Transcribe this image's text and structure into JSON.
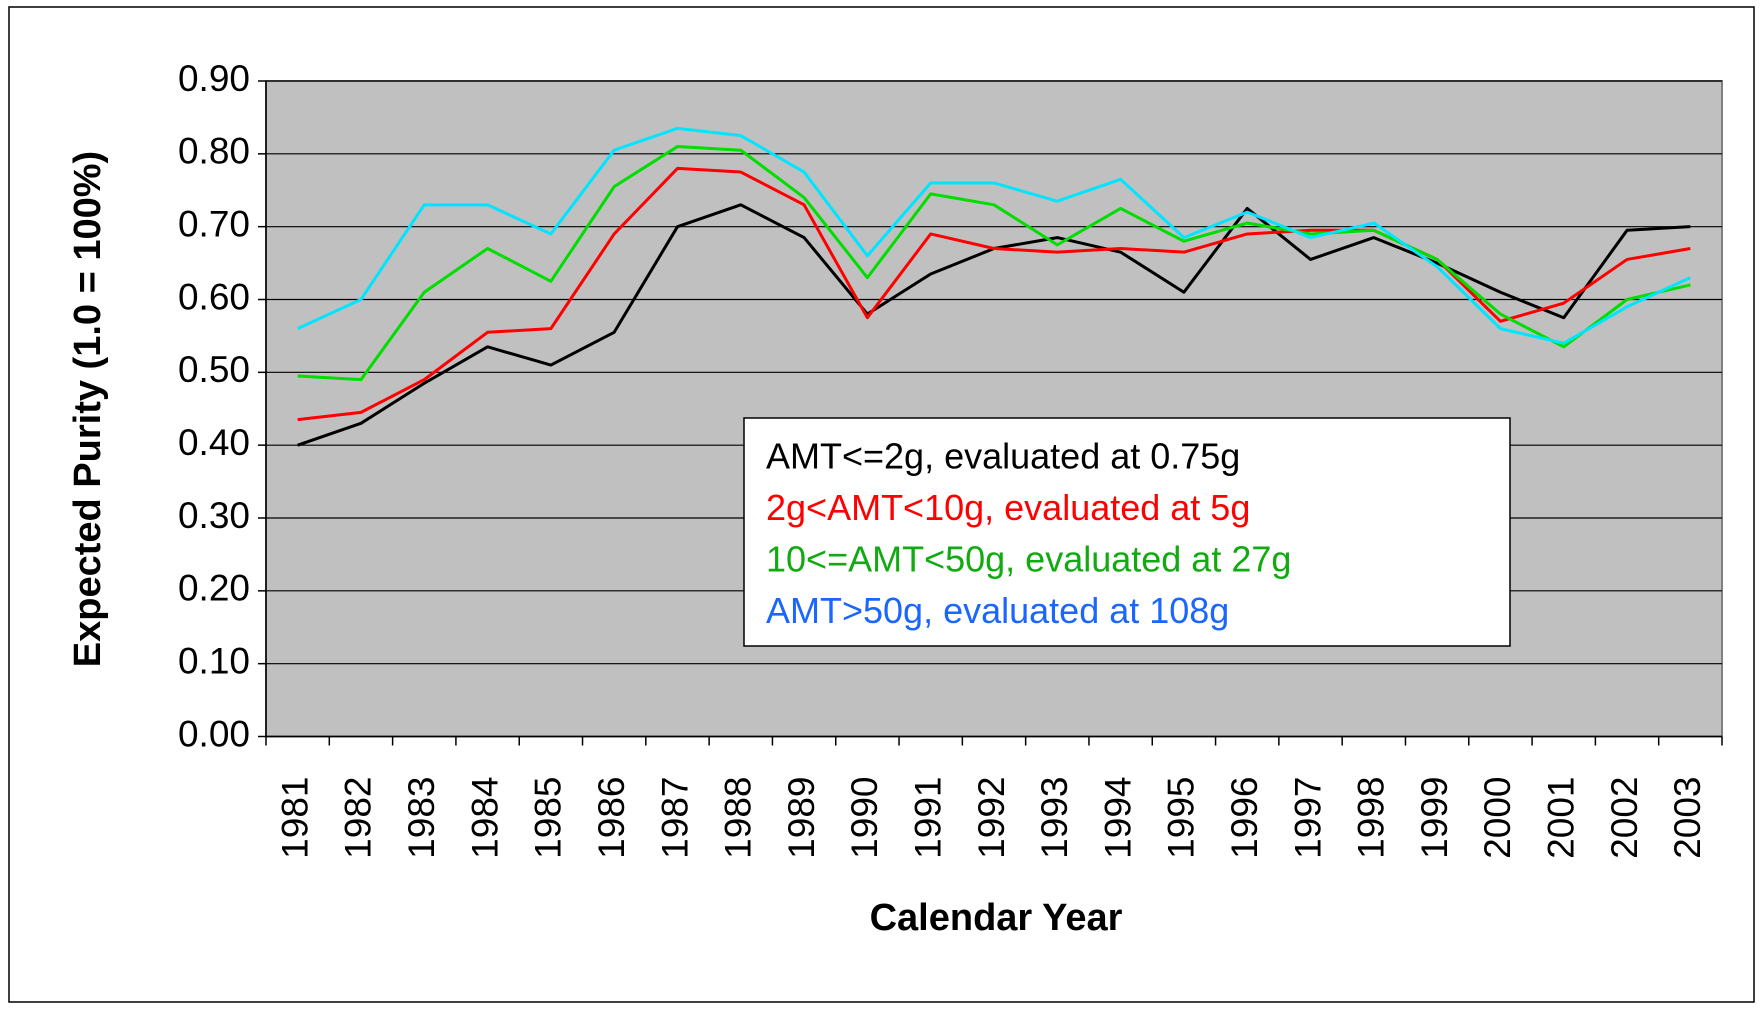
{
  "chart_data": {
    "type": "line",
    "xlabel": "Calendar Year",
    "ylabel": "Expected Purity (1.0 = 100%)",
    "categories": [
      "1981",
      "1982",
      "1983",
      "1984",
      "1985",
      "1986",
      "1987",
      "1988",
      "1989",
      "1990",
      "1991",
      "1992",
      "1993",
      "1994",
      "1995",
      "1996",
      "1997",
      "1998",
      "1999",
      "2000",
      "2001",
      "2002",
      "2003"
    ],
    "series": [
      {
        "name": "AMT<=2g, evaluated at 0.75g",
        "color": "#000000",
        "label_color": "#000000",
        "values": [
          0.4,
          0.43,
          0.485,
          0.535,
          0.51,
          0.555,
          0.7,
          0.73,
          0.685,
          0.58,
          0.635,
          0.67,
          0.685,
          0.665,
          0.61,
          0.725,
          0.655,
          0.685,
          0.65,
          0.61,
          0.575,
          0.695,
          0.7
        ]
      },
      {
        "name": "2g<AMT<10g, evaluated at 5g",
        "color": "#ff0000",
        "label_color": "#ff0000",
        "values": [
          0.435,
          0.445,
          0.49,
          0.555,
          0.56,
          0.69,
          0.78,
          0.775,
          0.73,
          0.575,
          0.69,
          0.67,
          0.665,
          0.67,
          0.665,
          0.69,
          0.695,
          0.695,
          0.655,
          0.57,
          0.595,
          0.655,
          0.67
        ]
      },
      {
        "name": "10<=AMT<50g, evaluated at 27g",
        "color": "#00dd00",
        "label_color": "#11aa11",
        "values": [
          0.495,
          0.49,
          0.61,
          0.67,
          0.625,
          0.755,
          0.81,
          0.805,
          0.74,
          0.63,
          0.745,
          0.73,
          0.675,
          0.725,
          0.68,
          0.705,
          0.69,
          0.695,
          0.655,
          0.58,
          0.535,
          0.6,
          0.62
        ]
      },
      {
        "name": "AMT>50g, evaluated at 108g",
        "color": "#00e5ff",
        "label_color": "#1a66ff",
        "values": [
          0.56,
          0.6,
          0.73,
          0.73,
          0.69,
          0.805,
          0.835,
          0.825,
          0.775,
          0.66,
          0.76,
          0.76,
          0.735,
          0.765,
          0.685,
          0.72,
          0.685,
          0.705,
          0.645,
          0.56,
          0.54,
          0.59,
          0.63
        ]
      }
    ],
    "ylim": [
      0,
      0.9
    ],
    "yticks": [
      {
        "value": 0,
        "label": "0.00"
      },
      {
        "value": 0.1,
        "label": "0.10"
      },
      {
        "value": 0.2,
        "label": "0.20"
      },
      {
        "value": 0.3,
        "label": "0.30"
      },
      {
        "value": 0.4,
        "label": "0.40"
      },
      {
        "value": 0.5,
        "label": "0.50"
      },
      {
        "value": 0.6,
        "label": "0.60"
      },
      {
        "value": 0.7,
        "label": "0.70"
      },
      {
        "value": 0.8,
        "label": "0.80"
      },
      {
        "value": 0.9,
        "label": "0.90"
      }
    ],
    "grid": true,
    "legend": "center"
  }
}
